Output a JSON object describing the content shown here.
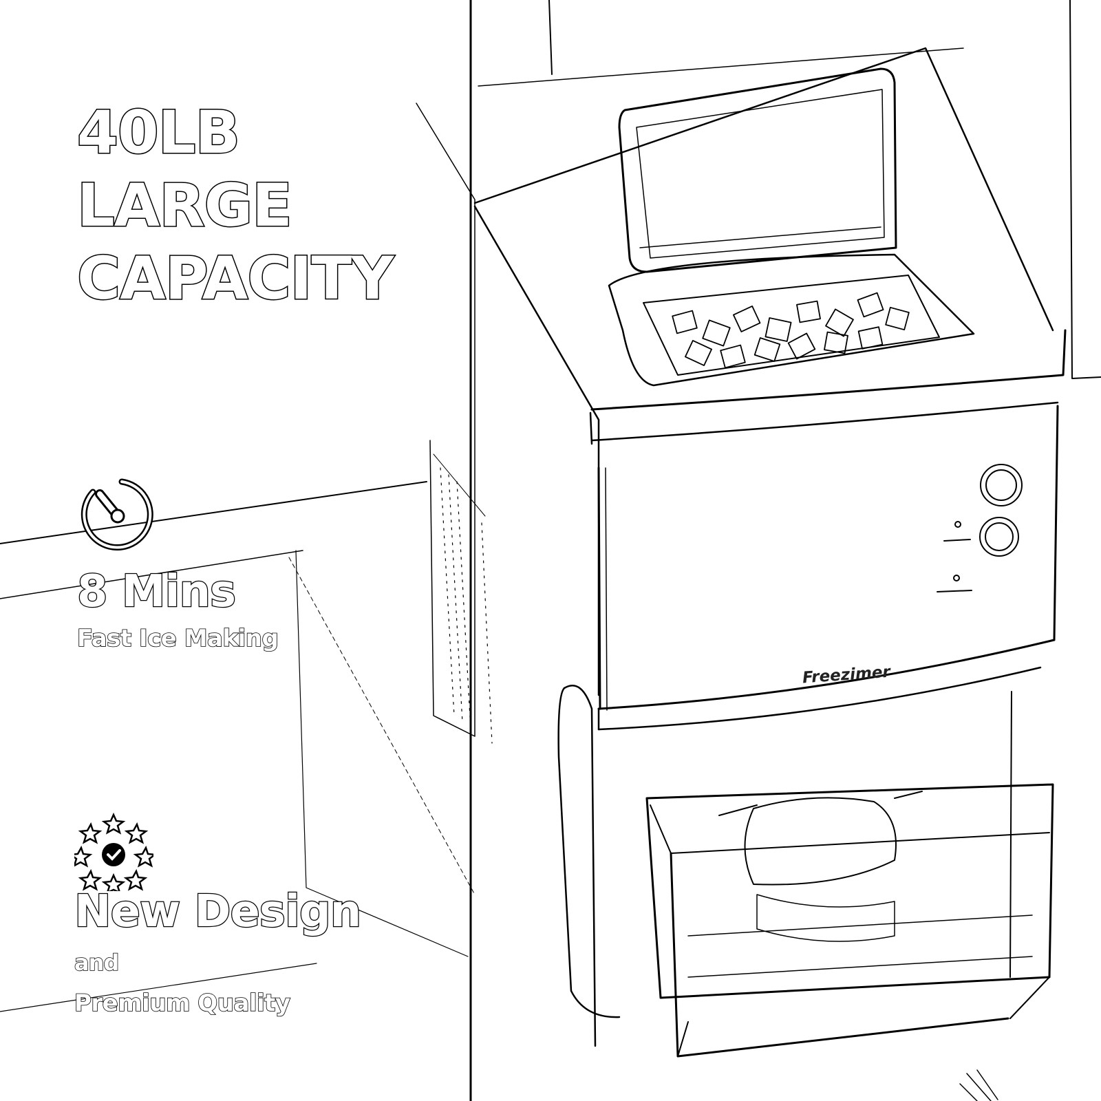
{
  "headline": {
    "lines": [
      "40LB",
      "LARGE",
      "CAPACITY"
    ]
  },
  "features": [
    {
      "icon": "timer-icon",
      "title": "8 Mins",
      "subtitle": "Fast Ice Making"
    },
    {
      "icon": "quality-badge-icon",
      "title": "New Design",
      "subtitle_lines": [
        "and",
        "Premium Quality"
      ]
    }
  ],
  "product": {
    "brand": "Freezimer"
  },
  "colors": {
    "line": "#000000",
    "fill": "#ffffff"
  }
}
